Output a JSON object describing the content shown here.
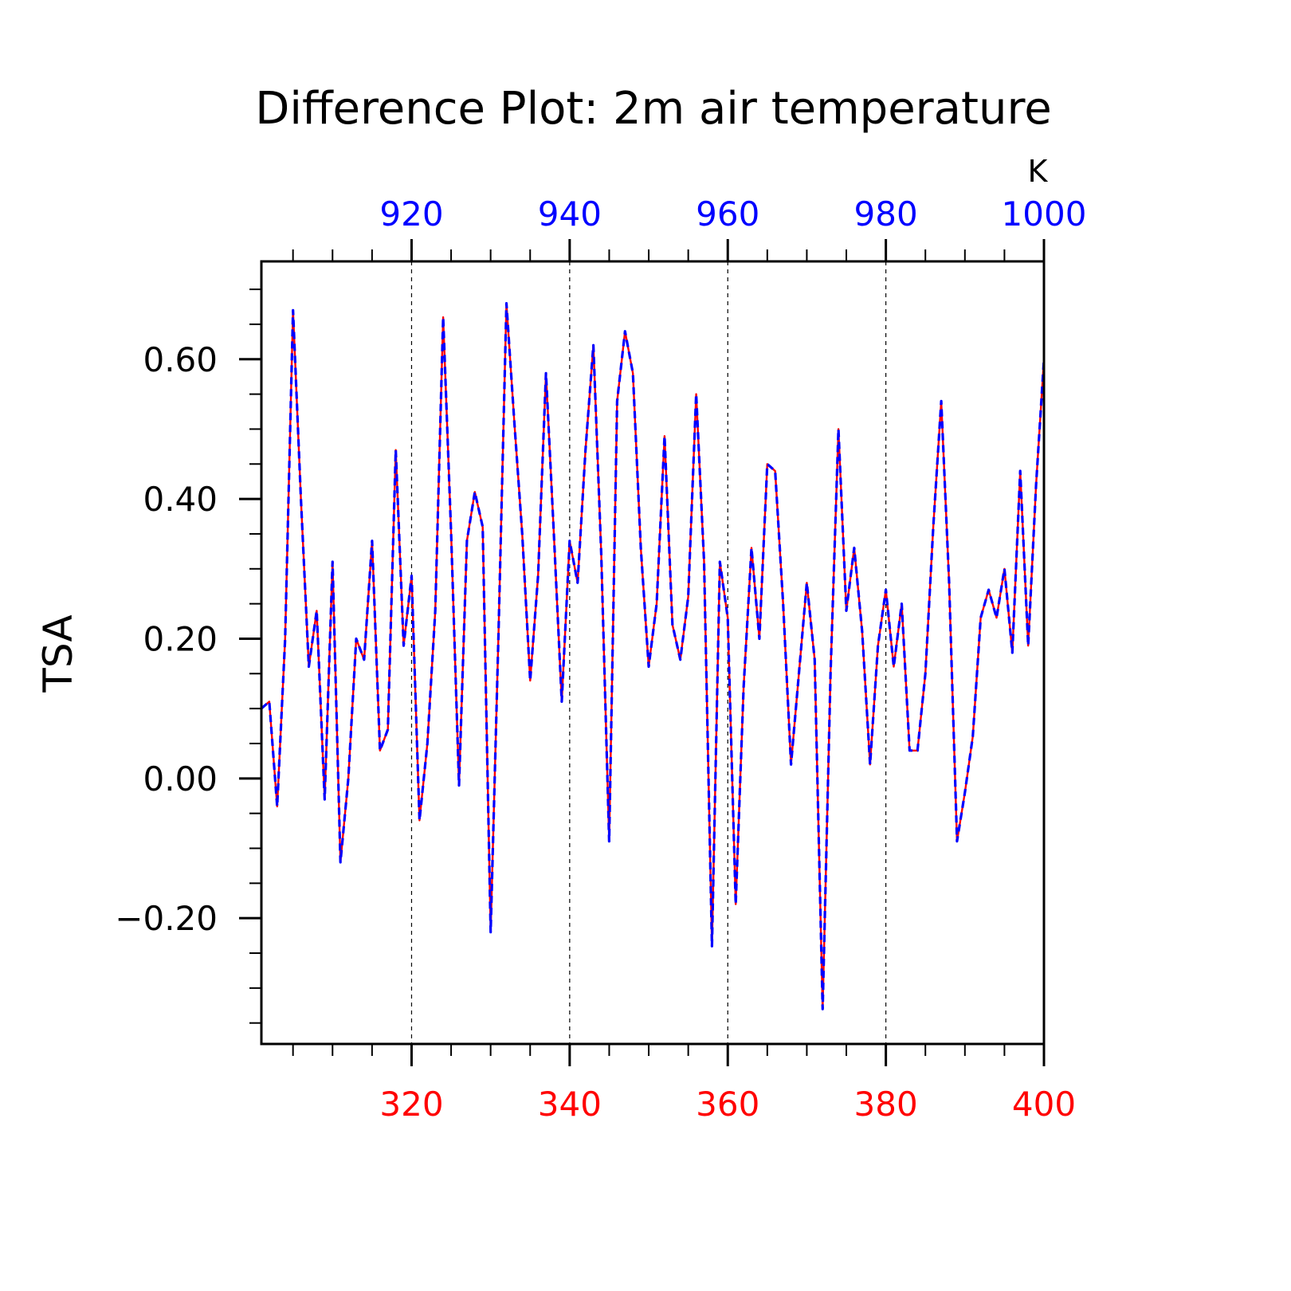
{
  "chart_data": {
    "type": "line",
    "title": "Difference Plot: 2m air temperature",
    "xlabel": "",
    "ylabel": "TSA",
    "units": "K",
    "xlim": [
      301,
      400
    ],
    "ylim": [
      -0.38,
      0.74
    ],
    "x_ticks": [
      320,
      340,
      360,
      380,
      400
    ],
    "x_top_ticks": [
      920,
      940,
      960,
      980,
      1000
    ],
    "y_ticks": [
      -0.2,
      0.0,
      0.2,
      0.4,
      0.6
    ],
    "y_tick_labels": [
      "−0.20",
      "0.00",
      "0.20",
      "0.40",
      "0.60"
    ],
    "grid": "dashed vertical lines at major x ticks",
    "colors": {
      "bottom_axis": "#ff0000",
      "top_axis": "#0000ff",
      "series_a": "#ff0000",
      "series_b": "#0000ff",
      "text": "#000000"
    },
    "x": [
      301,
      302,
      303,
      304,
      305,
      306,
      307,
      308,
      309,
      310,
      311,
      312,
      313,
      314,
      315,
      316,
      317,
      318,
      319,
      320,
      321,
      322,
      323,
      324,
      325,
      326,
      327,
      328,
      329,
      330,
      331,
      332,
      333,
      334,
      335,
      336,
      337,
      338,
      339,
      340,
      341,
      342,
      343,
      344,
      345,
      346,
      347,
      348,
      349,
      350,
      351,
      352,
      353,
      354,
      355,
      356,
      357,
      358,
      359,
      360,
      361,
      362,
      363,
      364,
      365,
      366,
      367,
      368,
      369,
      370,
      371,
      372,
      373,
      374,
      375,
      376,
      377,
      378,
      379,
      380,
      381,
      382,
      383,
      384,
      385,
      386,
      387,
      388,
      389,
      390,
      391,
      392,
      393,
      394,
      395,
      396,
      397,
      398,
      399,
      400
    ],
    "series": [
      {
        "name": "",
        "values": [
          0.1,
          0.11,
          -0.04,
          0.2,
          0.67,
          0.4,
          0.16,
          0.24,
          -0.03,
          0.31,
          -0.12,
          0.0,
          0.2,
          0.17,
          0.34,
          0.04,
          0.07,
          0.47,
          0.19,
          0.29,
          -0.06,
          0.05,
          0.24,
          0.66,
          0.35,
          -0.01,
          0.34,
          0.41,
          0.36,
          -0.22,
          0.21,
          0.68,
          0.51,
          0.35,
          0.14,
          0.29,
          0.58,
          0.35,
          0.11,
          0.34,
          0.28,
          0.47,
          0.62,
          0.32,
          -0.09,
          0.54,
          0.64,
          0.58,
          0.33,
          0.16,
          0.25,
          0.49,
          0.22,
          0.17,
          0.26,
          0.55,
          0.31,
          -0.24,
          0.31,
          0.23,
          -0.18,
          0.13,
          0.33,
          0.2,
          0.45,
          0.44,
          0.25,
          0.02,
          0.15,
          0.28,
          0.17,
          -0.33,
          0.15,
          0.5,
          0.24,
          0.33,
          0.21,
          0.02,
          0.19,
          0.27,
          0.16,
          0.25,
          0.04,
          0.04,
          0.15,
          0.36,
          0.54,
          0.28,
          -0.09,
          -0.02,
          0.06,
          0.23,
          0.27,
          0.23,
          0.3,
          0.18,
          0.44,
          0.19,
          0.42,
          0.6
        ]
      },
      {
        "name": "",
        "values": [
          0.1,
          0.11,
          -0.04,
          0.2,
          0.67,
          0.4,
          0.16,
          0.24,
          -0.03,
          0.31,
          -0.12,
          0.0,
          0.2,
          0.17,
          0.34,
          0.04,
          0.07,
          0.47,
          0.19,
          0.29,
          -0.06,
          0.05,
          0.24,
          0.66,
          0.35,
          -0.01,
          0.34,
          0.41,
          0.36,
          -0.22,
          0.21,
          0.68,
          0.51,
          0.35,
          0.14,
          0.29,
          0.58,
          0.35,
          0.11,
          0.34,
          0.28,
          0.47,
          0.62,
          0.32,
          -0.09,
          0.54,
          0.64,
          0.58,
          0.33,
          0.16,
          0.25,
          0.49,
          0.22,
          0.17,
          0.26,
          0.55,
          0.31,
          -0.24,
          0.31,
          0.23,
          -0.18,
          0.13,
          0.33,
          0.2,
          0.45,
          0.44,
          0.25,
          0.02,
          0.15,
          0.28,
          0.17,
          -0.33,
          0.15,
          0.5,
          0.24,
          0.33,
          0.21,
          0.02,
          0.19,
          0.27,
          0.16,
          0.25,
          0.04,
          0.04,
          0.15,
          0.36,
          0.54,
          0.28,
          -0.09,
          -0.02,
          0.06,
          0.23,
          0.27,
          0.23,
          0.3,
          0.18,
          0.44,
          0.19,
          0.42,
          0.6
        ]
      }
    ]
  }
}
